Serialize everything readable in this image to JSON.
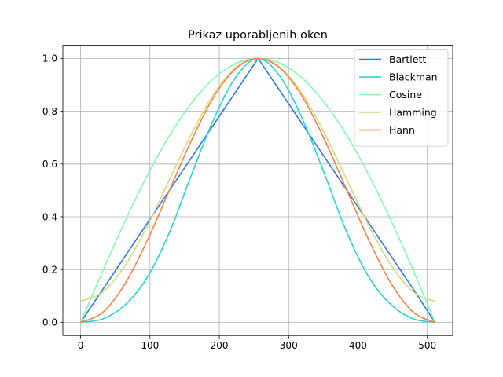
{
  "chart_data": {
    "type": "line",
    "title": "Prikaz uporabljenih oken",
    "xlabel": "",
    "ylabel": "",
    "xlim": [
      -25.6,
      536.6
    ],
    "ylim": [
      -0.05,
      1.05
    ],
    "xticks": [
      "0",
      "100",
      "200",
      "300",
      "400",
      "500"
    ],
    "yticks": [
      "0.0",
      "0.2",
      "0.4",
      "0.6",
      "0.8",
      "1.0"
    ],
    "grid": true,
    "legend_position": "top-right",
    "series": [
      {
        "name": "Bartlett",
        "color": "#2c7be5",
        "x": [
          0,
          32,
          64,
          96,
          128,
          160,
          192,
          224,
          256,
          288,
          320,
          352,
          384,
          416,
          448,
          480,
          511
        ],
        "y": [
          0.0,
          0.125,
          0.25,
          0.375,
          0.5,
          0.625,
          0.75,
          0.875,
          1.0,
          0.875,
          0.75,
          0.625,
          0.5,
          0.375,
          0.25,
          0.125,
          0.0
        ]
      },
      {
        "name": "Blackman",
        "color": "#24d8d0",
        "x": [
          0,
          32,
          64,
          96,
          128,
          160,
          192,
          224,
          256,
          288,
          320,
          352,
          384,
          416,
          448,
          480,
          511
        ],
        "y": [
          0.0,
          0.013,
          0.066,
          0.17,
          0.34,
          0.56,
          0.77,
          0.93,
          1.0,
          0.93,
          0.77,
          0.56,
          0.34,
          0.17,
          0.066,
          0.013,
          0.0
        ]
      },
      {
        "name": "Cosine",
        "color": "#80ffac",
        "x": [
          0,
          32,
          64,
          96,
          128,
          160,
          192,
          224,
          256,
          288,
          320,
          352,
          384,
          416,
          448,
          480,
          511
        ],
        "y": [
          0.0,
          0.195,
          0.383,
          0.556,
          0.707,
          0.831,
          0.924,
          0.981,
          1.0,
          0.981,
          0.924,
          0.831,
          0.707,
          0.556,
          0.383,
          0.195,
          0.0
        ]
      },
      {
        "name": "Hamming",
        "color": "#d4dc7f",
        "x": [
          0,
          32,
          64,
          96,
          128,
          160,
          192,
          224,
          256,
          288,
          320,
          352,
          384,
          416,
          448,
          480,
          511
        ],
        "y": [
          0.08,
          0.115,
          0.215,
          0.364,
          0.54,
          0.715,
          0.865,
          0.965,
          1.0,
          0.965,
          0.865,
          0.715,
          0.54,
          0.364,
          0.215,
          0.115,
          0.08
        ]
      },
      {
        "name": "Hann",
        "color": "#ff7f45",
        "x": [
          0,
          32,
          64,
          96,
          128,
          160,
          192,
          224,
          256,
          288,
          320,
          352,
          384,
          416,
          448,
          480,
          511
        ],
        "y": [
          0.0,
          0.038,
          0.146,
          0.309,
          0.5,
          0.691,
          0.854,
          0.962,
          1.0,
          0.962,
          0.854,
          0.691,
          0.5,
          0.309,
          0.146,
          0.038,
          0.0
        ]
      }
    ]
  }
}
